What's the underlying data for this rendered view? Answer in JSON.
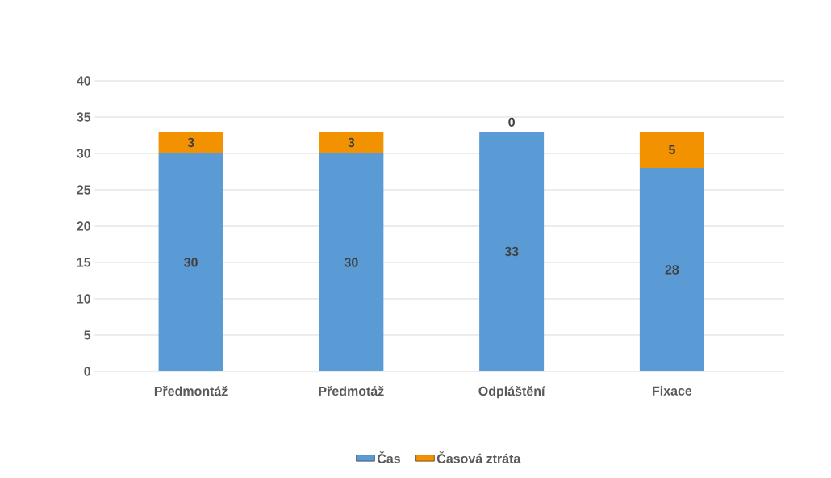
{
  "chart_data": {
    "type": "bar",
    "stacked": true,
    "categories": [
      "Předmontáž",
      "Předmotáž",
      "Odpláštění",
      "Fixace"
    ],
    "series": [
      {
        "name": "Čas",
        "color": "#5b9bd5",
        "values": [
          30,
          30,
          33,
          28
        ]
      },
      {
        "name": "Časová ztráta",
        "color": "#f39200",
        "values": [
          3,
          3,
          0,
          5
        ]
      }
    ],
    "ylim": [
      0,
      40
    ],
    "yticks": [
      0,
      5,
      10,
      15,
      20,
      25,
      30,
      35,
      40
    ],
    "grid": "y",
    "legend": "bottom",
    "data_labels": true
  }
}
